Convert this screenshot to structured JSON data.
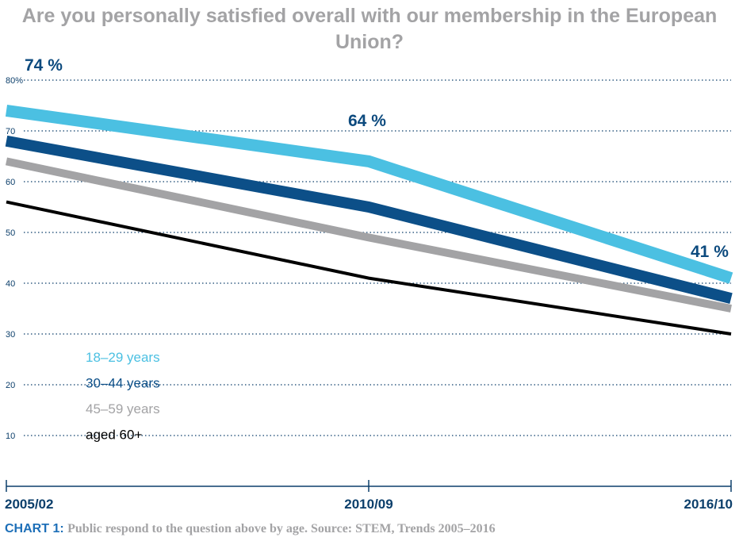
{
  "chart_data": {
    "type": "line",
    "title": "Are you personally satisfied overall with our membership in the European Union?",
    "x": [
      "2005/02",
      "2010/09",
      "2016/10"
    ],
    "ylim": [
      0,
      80
    ],
    "yticks": [
      10,
      20,
      30,
      40,
      50,
      60,
      70,
      80
    ],
    "ytick_labels": [
      "10",
      "20",
      "30",
      "40",
      "50",
      "60",
      "70",
      "80%"
    ],
    "grid": true,
    "legend_placement": "lower-left",
    "series": [
      {
        "name": "18–29 years",
        "values": [
          74,
          64,
          41
        ],
        "color": "#4bc0e2"
      },
      {
        "name": "30–44 years",
        "values": [
          68,
          55,
          37
        ],
        "color": "#0c4f88"
      },
      {
        "name": "45–59 years",
        "values": [
          64,
          49,
          35
        ],
        "color": "#a3a3a5"
      },
      {
        "name": "aged 60+",
        "values": [
          56,
          41,
          30
        ],
        "color": "#000000"
      }
    ],
    "annotations": [
      "74 %",
      "64 %",
      "41 %"
    ]
  },
  "caption": {
    "lead": "CHART 1:",
    "text": "Public respond to the question above by age. Source: STEM, Trends 2005–2016"
  }
}
